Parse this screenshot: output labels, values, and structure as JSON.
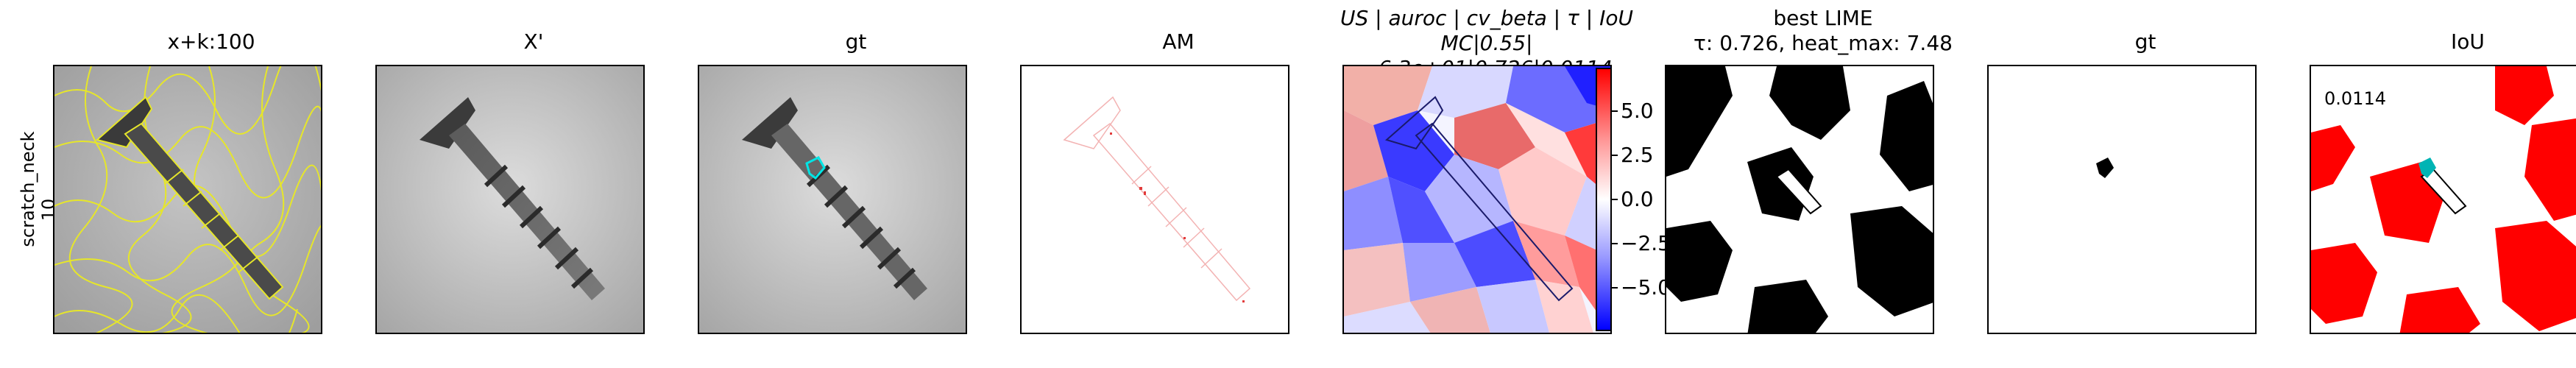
{
  "row": {
    "label_line1": "scratch_neck",
    "label_line2": "10"
  },
  "panels": [
    {
      "title": "x+k:100"
    },
    {
      "title": "X'"
    },
    {
      "title": "gt"
    },
    {
      "title": "AM"
    },
    {
      "title_line1": "US | auroc | cv_beta | τ | IoU",
      "title_line2": "MC|0.55|−6.3e+01|0.726|0.0114"
    },
    {
      "title_line1": "best LIME",
      "title_line2": "τ: 0.726, heat_max: 7.48"
    },
    {
      "title": "gt"
    },
    {
      "title": "IoU",
      "annotation": "0.0114"
    }
  ],
  "colorbar": {
    "ticks": [
      "5.0",
      "2.5",
      "0.0",
      "−2.5",
      "−5.0"
    ],
    "values": [
      5.0,
      2.5,
      0.0,
      -2.5,
      -5.0
    ],
    "vmin": -7.48,
    "vmax": 7.48
  },
  "colors": {
    "segment_outline": "#e6e62a",
    "gt_mask": "#00e5e5",
    "iou_fill": "#ff0000",
    "am_speckle": "#e23b3b"
  }
}
